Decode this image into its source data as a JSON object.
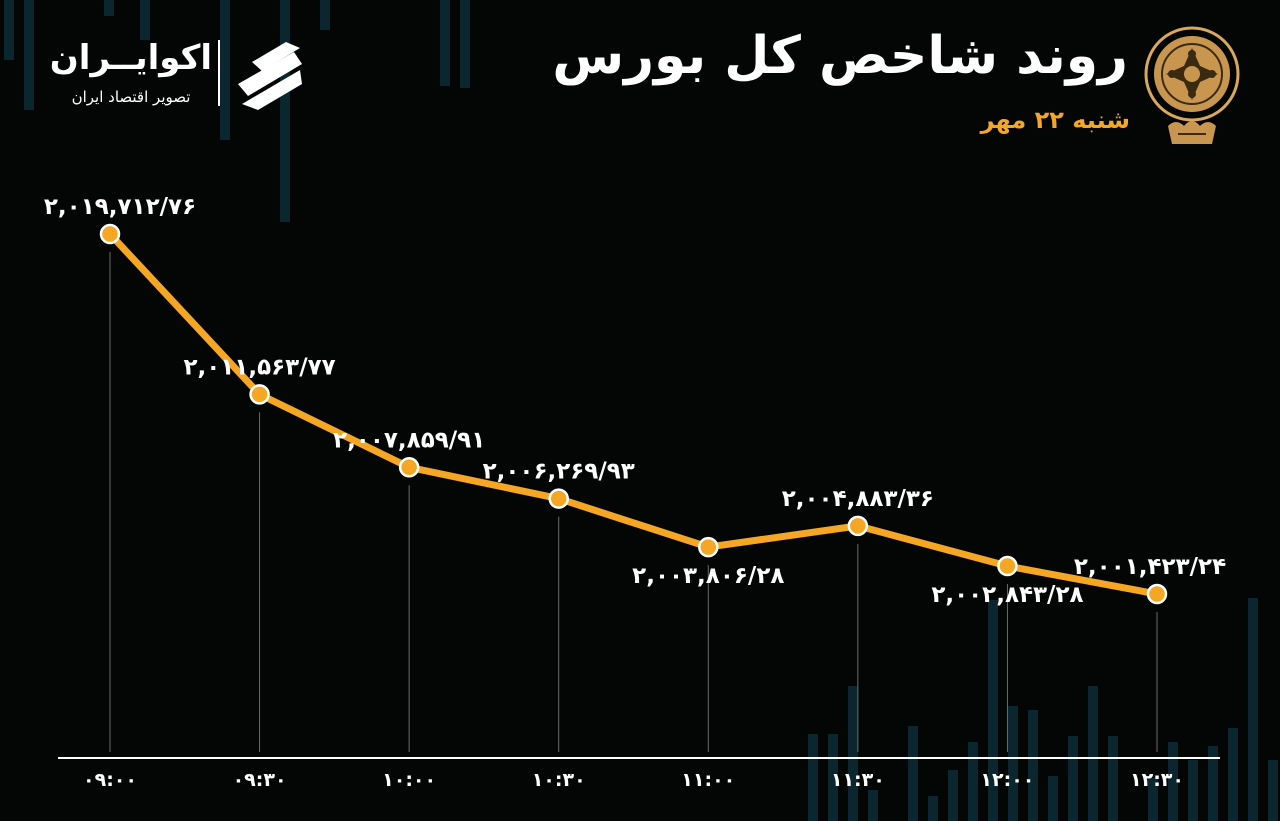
{
  "header": {
    "title": "روند شاخص کل بورس",
    "date": "شنبه ۲۲ مهر"
  },
  "brand": {
    "name": "اکوایــران",
    "tagline": "تصویر اقتصاد ایران"
  },
  "colors": {
    "background": "#040505",
    "accent": "#f5a623",
    "line": "#f5a623",
    "text": "#ffffff",
    "deco_bars": "#0c2630"
  },
  "icons": {
    "emblem": "tehran-stock-exchange-emblem-icon",
    "brand_mark": "ecoiran-logo-icon"
  },
  "chart_data": {
    "type": "line",
    "x": [
      "۰۹:۰۰",
      "۰۹:۳۰",
      "۱۰:۰۰",
      "۱۰:۳۰",
      "۱۱:۰۰",
      "۱۱:۳۰",
      "۱۲:۰۰",
      "۱۲:۳۰"
    ],
    "values": [
      2019712.76,
      2011563.77,
      2007859.91,
      2006269.93,
      2003806.28,
      2004883.36,
      2002843.28,
      2001423.24
    ],
    "data_labels": [
      "۲,۰۱۹,۷۱۲/۷۶",
      "۲,۰۱۱,۵۶۳/۷۷",
      "۲,۰۰۷,۸۵۹/۹۱",
      "۲,۰۰۶,۲۶۹/۹۳",
      "۲,۰۰۳,۸۰۶/۲۸",
      "۲,۰۰۴,۸۸۳/۳۶",
      "۲,۰۰۲,۸۴۳/۲۸",
      "۲,۰۰۱,۴۲۳/۲۴"
    ],
    "label_positions": [
      "above",
      "above",
      "above",
      "above",
      "below",
      "above",
      "below",
      "above"
    ],
    "title": "روند شاخص کل بورس",
    "xlabel": "",
    "ylabel": "",
    "grid": false,
    "legend": "none"
  }
}
